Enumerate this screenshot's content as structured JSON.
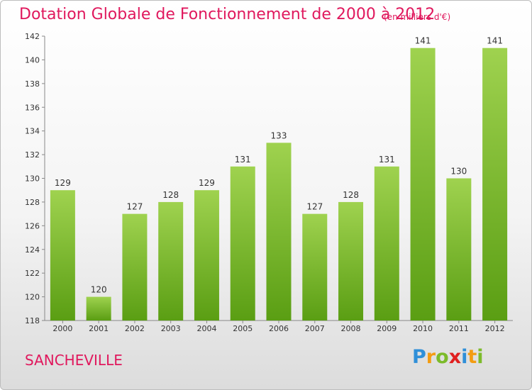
{
  "title": "Dotation Globale de Fonctionnement de 2000 à 2012",
  "unit": "(en milliers d'€)",
  "location": "SANCHEVILLE",
  "logo": {
    "text": "Proxiti",
    "letters": [
      {
        "ch": "P",
        "color": "#2f8fd8"
      },
      {
        "ch": "r",
        "color": "#f39c12"
      },
      {
        "ch": "o",
        "color": "#7cbb2a"
      },
      {
        "ch": "x",
        "color": "#e02020"
      },
      {
        "ch": "i",
        "color": "#2f8fd8"
      },
      {
        "ch": "t",
        "color": "#f39c12"
      },
      {
        "ch": "i",
        "color": "#7cbb2a"
      }
    ]
  },
  "colors": {
    "title": "#e0185d",
    "bar_light": "#9fd24f",
    "bar_dark": "#5a9e13",
    "axis": "#888888"
  },
  "chart_data": {
    "type": "bar",
    "categories": [
      "2000",
      "2001",
      "2002",
      "2003",
      "2004",
      "2005",
      "2006",
      "2007",
      "2008",
      "2009",
      "2010",
      "2011",
      "2012"
    ],
    "values": [
      129,
      120,
      127,
      128,
      129,
      131,
      133,
      127,
      128,
      131,
      141,
      130,
      141
    ],
    "ylim": [
      118,
      142
    ],
    "yticks": [
      118,
      120,
      122,
      124,
      126,
      128,
      130,
      132,
      134,
      136,
      138,
      140,
      142
    ],
    "grid": false
  }
}
